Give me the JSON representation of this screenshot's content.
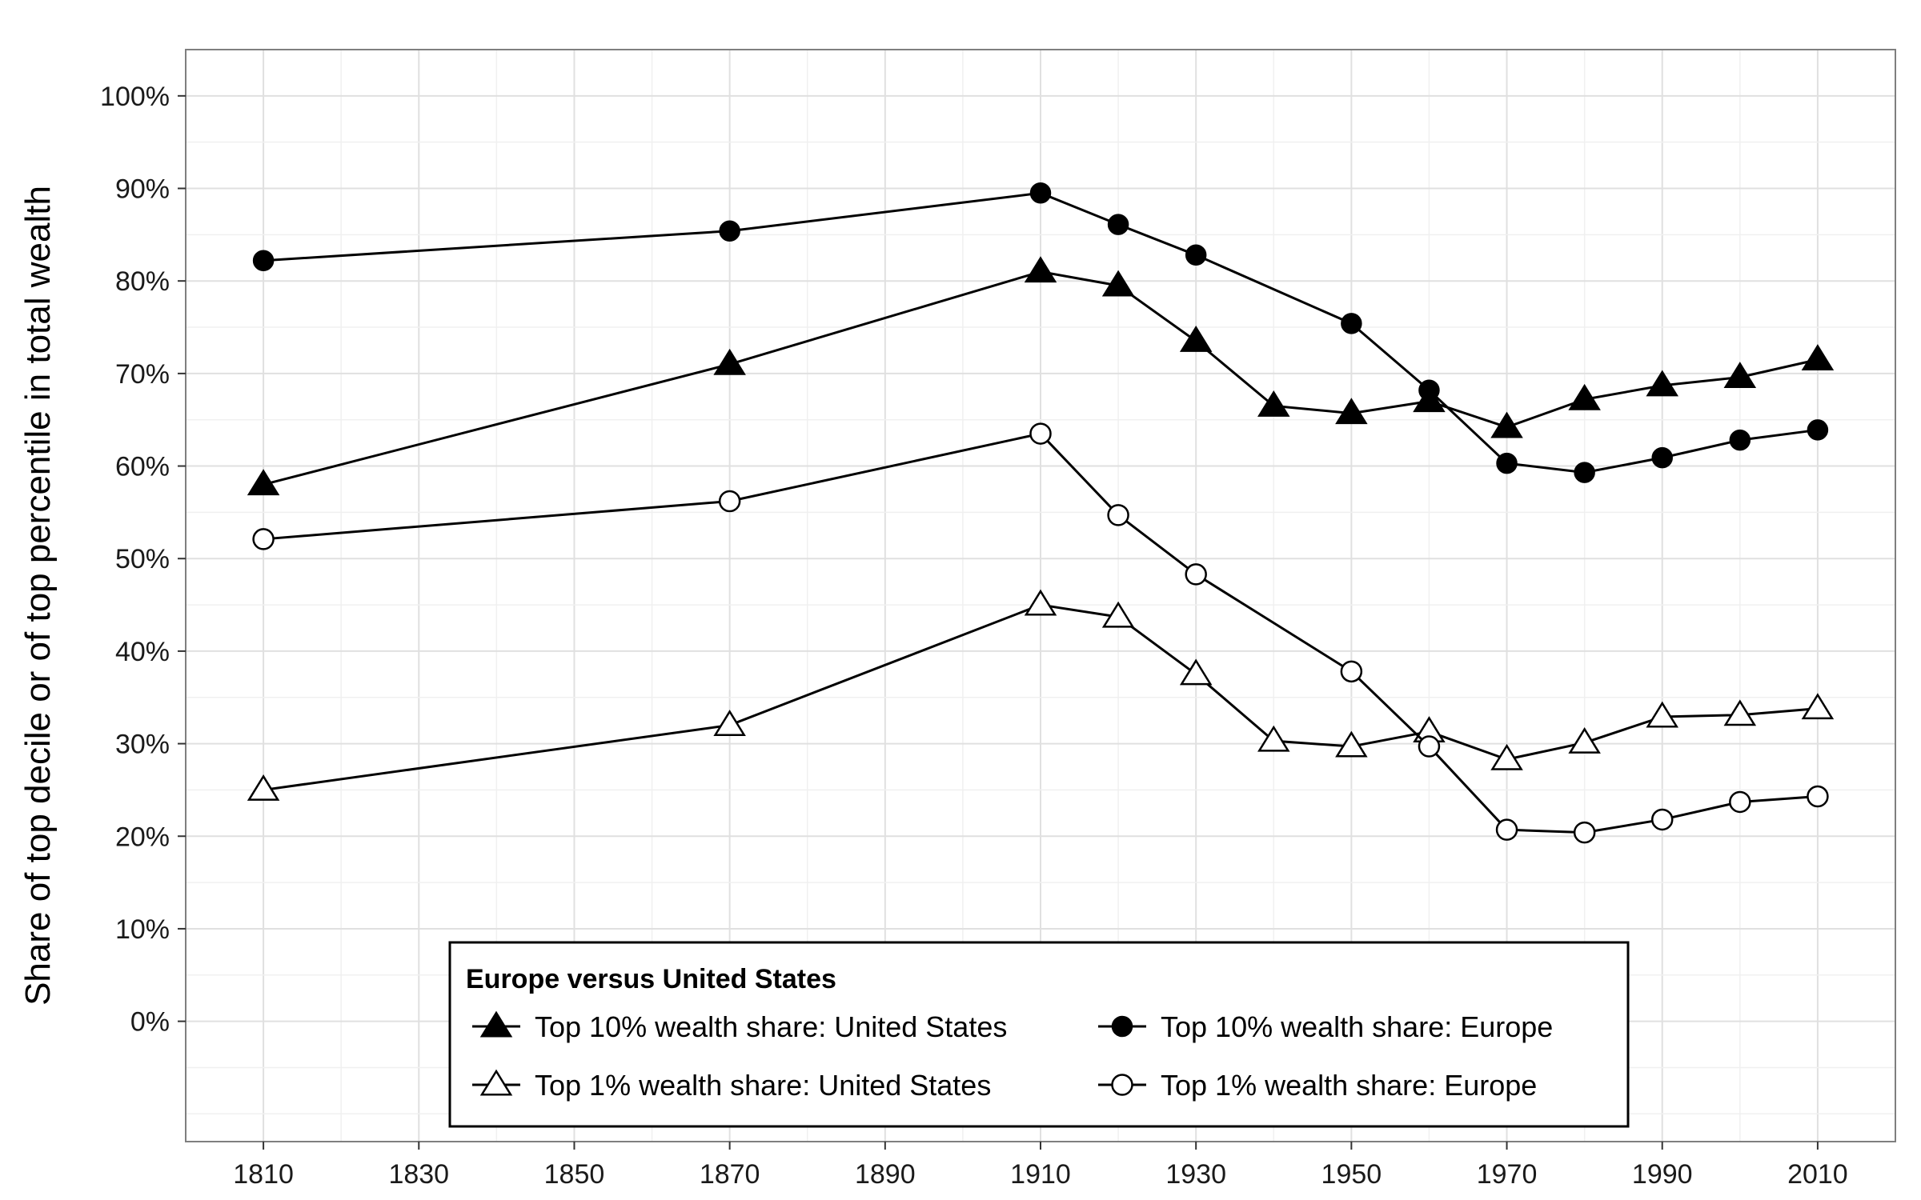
{
  "chart_data": {
    "type": "line",
    "title": "",
    "xlabel": "",
    "ylabel": "Share of top decile or of top percentile in total wealth",
    "x": [
      1810,
      1870,
      1910,
      1920,
      1930,
      1940,
      1950,
      1960,
      1970,
      1980,
      1990,
      2000,
      2010
    ],
    "xlim": [
      1800,
      2020
    ],
    "ylim": [
      -0.13,
      1.05
    ],
    "x_ticks": [
      1810,
      1830,
      1850,
      1870,
      1890,
      1910,
      1930,
      1950,
      1970,
      1990,
      2010
    ],
    "x_tick_labels": [
      "1810",
      "1830",
      "1850",
      "1870",
      "1890",
      "1910",
      "1930",
      "1950",
      "1970",
      "1990",
      "2010"
    ],
    "y_ticks": [
      0,
      0.1,
      0.2,
      0.3,
      0.4,
      0.5,
      0.6,
      0.7,
      0.8,
      0.9,
      1.0
    ],
    "y_tick_labels": [
      "0%",
      "10%",
      "20%",
      "30%",
      "40%",
      "50%",
      "60%",
      "70%",
      "80%",
      "90%",
      "100%"
    ],
    "grid": true,
    "legend_position": "bottom-center",
    "legend_title": "Europe versus United States",
    "series": [
      {
        "name": "Top 10% wealth share: United States",
        "marker": "filled-triangle",
        "x": [
          1810,
          1870,
          1910,
          1920,
          1930,
          1940,
          1950,
          1960,
          1970,
          1980,
          1990,
          2000,
          2010
        ],
        "values": [
          0.58,
          0.71,
          0.81,
          0.795,
          0.735,
          0.665,
          0.657,
          0.67,
          0.642,
          0.672,
          0.687,
          0.696,
          0.715
        ]
      },
      {
        "name": "Top 10% wealth share: Europe",
        "marker": "filled-circle",
        "x": [
          1810,
          1870,
          1910,
          1920,
          1930,
          1950,
          1960,
          1970,
          1980,
          1990,
          2000,
          2010
        ],
        "values": [
          0.822,
          0.854,
          0.895,
          0.861,
          0.828,
          0.754,
          0.682,
          0.603,
          0.593,
          0.609,
          0.628,
          0.639
        ]
      },
      {
        "name": "Top 1% wealth share: United States",
        "marker": "open-triangle",
        "x": [
          1810,
          1870,
          1910,
          1920,
          1930,
          1940,
          1950,
          1960,
          1970,
          1980,
          1990,
          2000,
          2010
        ],
        "values": [
          0.25,
          0.32,
          0.45,
          0.437,
          0.375,
          0.303,
          0.297,
          0.313,
          0.283,
          0.301,
          0.329,
          0.331,
          0.338
        ]
      },
      {
        "name": "Top 1% wealth share: Europe",
        "marker": "open-circle",
        "x": [
          1810,
          1870,
          1910,
          1920,
          1930,
          1950,
          1960,
          1970,
          1980,
          1990,
          2000,
          2010
        ],
        "values": [
          0.521,
          0.562,
          0.635,
          0.547,
          0.483,
          0.378,
          0.297,
          0.207,
          0.204,
          0.218,
          0.237,
          0.243
        ]
      }
    ]
  }
}
